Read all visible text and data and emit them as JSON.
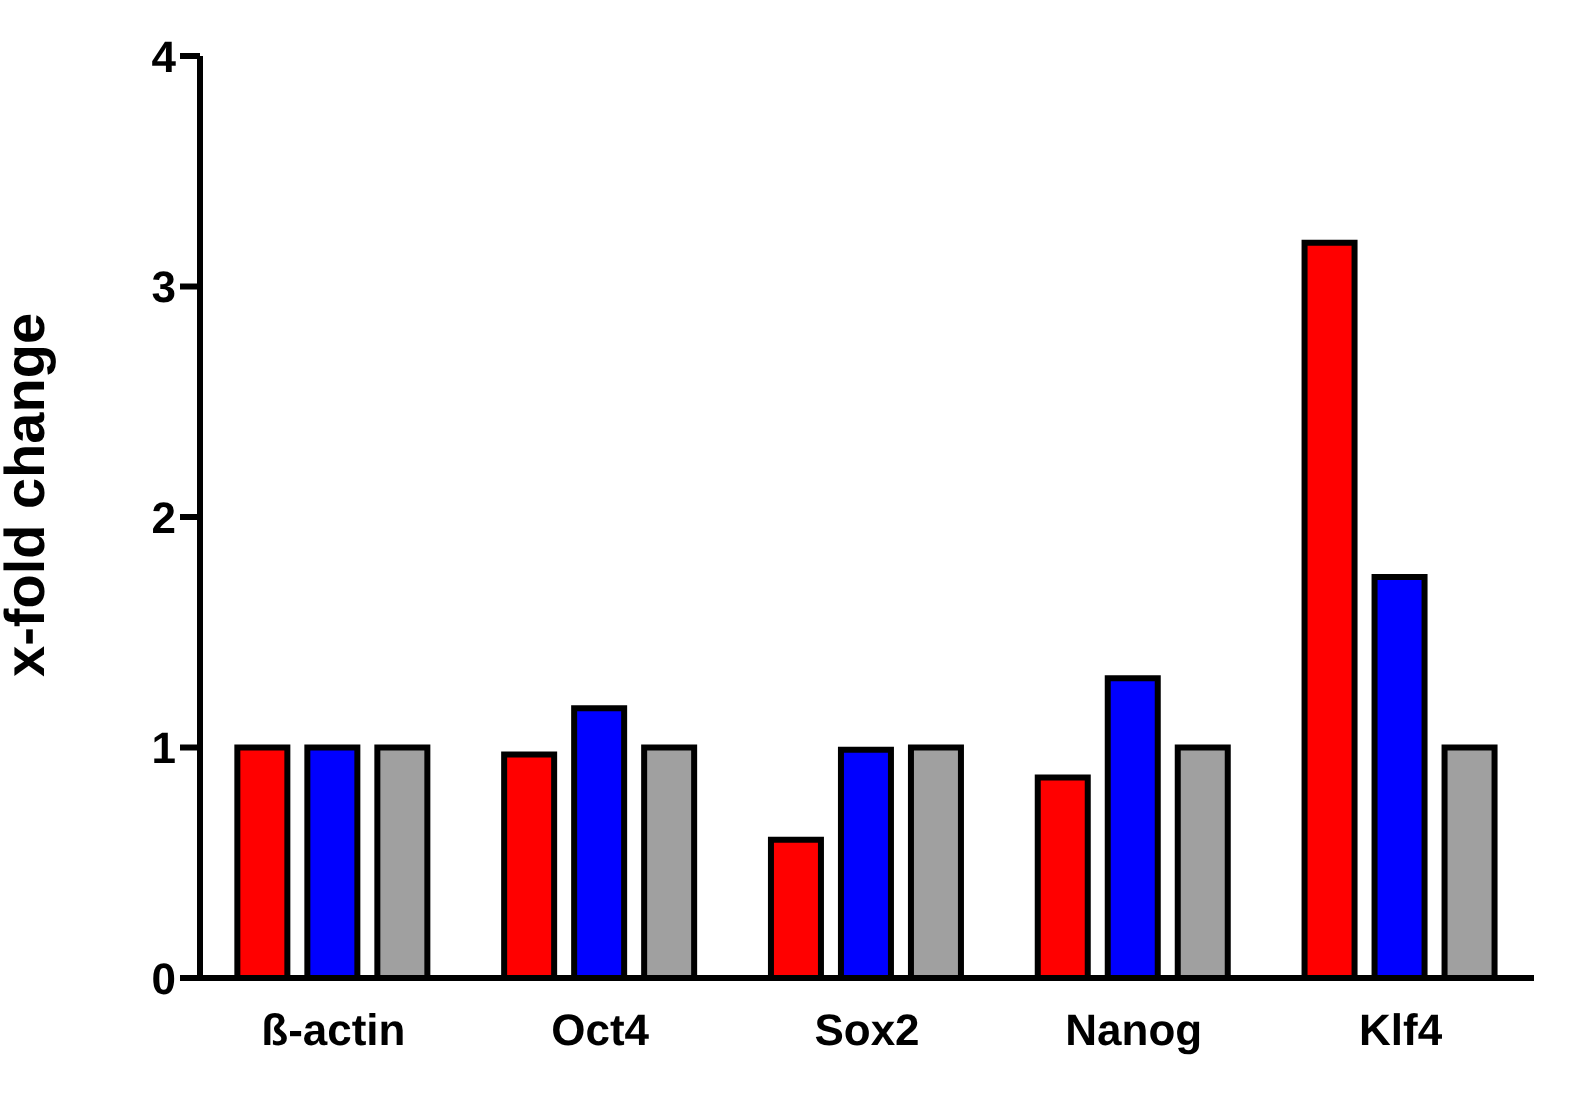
{
  "chart_data": {
    "type": "bar",
    "ylabel": "x-fold change",
    "categories": [
      "ß-actin",
      "Oct4",
      "Sox2",
      "Nanog",
      "Klf4"
    ],
    "series": [
      {
        "color": "#ff0000",
        "values": [
          1,
          0.97,
          0.6,
          0.87,
          3.19
        ]
      },
      {
        "color": "#0000ff",
        "values": [
          1,
          1.17,
          0.99,
          1.3,
          1.74
        ]
      },
      {
        "color": "#a0a0a0",
        "values": [
          1,
          1,
          1,
          1,
          1
        ]
      }
    ],
    "ylim": [
      0,
      4
    ],
    "yticks": [
      0,
      1,
      2,
      3,
      4
    ],
    "grid": false,
    "legend": false
  }
}
